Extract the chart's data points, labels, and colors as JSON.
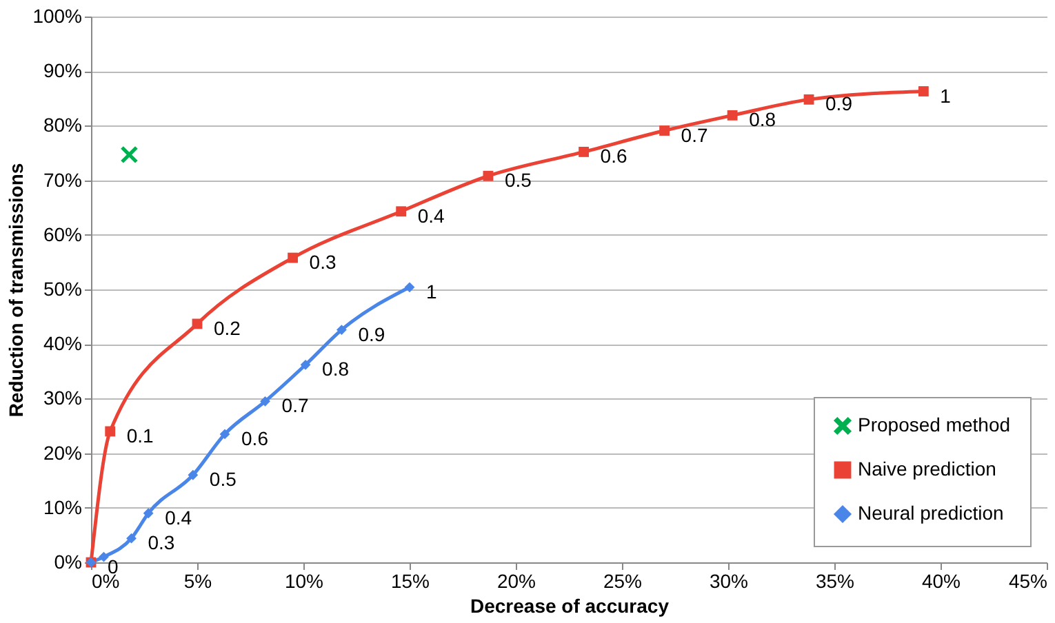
{
  "chart_data": {
    "type": "line",
    "xlabel": "Decrease of accuracy",
    "ylabel": "Reduction of transmissions",
    "xlim": [
      0,
      45
    ],
    "ylim": [
      0,
      100
    ],
    "xticks": [
      {
        "value": 0,
        "label": "0%"
      },
      {
        "value": 5,
        "label": "5%"
      },
      {
        "value": 10,
        "label": "10%"
      },
      {
        "value": 15,
        "label": "15%"
      },
      {
        "value": 20,
        "label": "20%"
      },
      {
        "value": 25,
        "label": "25%"
      },
      {
        "value": 30,
        "label": "30%"
      },
      {
        "value": 35,
        "label": "35%"
      },
      {
        "value": 40,
        "label": "40%"
      },
      {
        "value": 45,
        "label": "45%"
      }
    ],
    "yticks": [
      {
        "value": 0,
        "label": "0%"
      },
      {
        "value": 10,
        "label": "10%"
      },
      {
        "value": 20,
        "label": "20%"
      },
      {
        "value": 30,
        "label": "30%"
      },
      {
        "value": 40,
        "label": "40%"
      },
      {
        "value": 50,
        "label": "50%"
      },
      {
        "value": 60,
        "label": "60%"
      },
      {
        "value": 70,
        "label": "70%"
      },
      {
        "value": 80,
        "label": "80%"
      },
      {
        "value": 90,
        "label": "90%"
      },
      {
        "value": 100,
        "label": "100%"
      }
    ],
    "grid": "y",
    "legend": "bottom right",
    "line_style": "solid",
    "annotations": [
      {
        "text": "0",
        "x": 0,
        "y": 0
      },
      {
        "text": "0.1",
        "x": 0.9,
        "y": 24
      },
      {
        "text": "0.2",
        "x": 5.0,
        "y": 43.7
      },
      {
        "text": "0.3",
        "x": 9.5,
        "y": 55.8
      },
      {
        "text": "0.4",
        "x": 14.6,
        "y": 64.3
      },
      {
        "text": "0.5",
        "x": 18.7,
        "y": 70.8
      },
      {
        "text": "0.6",
        "x": 23.2,
        "y": 75.2
      },
      {
        "text": "0.7",
        "x": 27.0,
        "y": 79.1
      },
      {
        "text": "0.8",
        "x": 30.2,
        "y": 81.9
      },
      {
        "text": "0.9",
        "x": 33.8,
        "y": 84.8
      },
      {
        "text": "1",
        "x": 39.2,
        "y": 86.3
      },
      {
        "text": "0.3",
        "x": 1.9,
        "y": 4.4
      },
      {
        "text": "0.4",
        "x": 2.7,
        "y": 9
      },
      {
        "text": "0.5",
        "x": 4.8,
        "y": 16
      },
      {
        "text": "0.6",
        "x": 6.3,
        "y": 23.5
      },
      {
        "text": "0.7",
        "x": 8.2,
        "y": 29.5
      },
      {
        "text": "0.8",
        "x": 10.1,
        "y": 36.2
      },
      {
        "text": "0.9",
        "x": 11.8,
        "y": 42.6
      },
      {
        "text": "1",
        "x": 15.0,
        "y": 50.4
      }
    ],
    "series": [
      {
        "name": "Proposed method",
        "type": "scatter",
        "marker": "cross",
        "color": "#00b050",
        "x": [
          1.8
        ],
        "values": [
          74.7
        ]
      },
      {
        "name": "Naive prediction",
        "type": "line",
        "marker": "square",
        "color": "#ea4335",
        "x": [
          0,
          0.9,
          5.0,
          9.5,
          14.6,
          18.7,
          23.2,
          27.0,
          30.2,
          33.8,
          39.2
        ],
        "values": [
          0,
          24,
          43.7,
          55.8,
          64.3,
          70.8,
          75.2,
          79.1,
          81.9,
          84.8,
          86.3
        ]
      },
      {
        "name": "Neural prediction",
        "type": "line",
        "marker": "diamond",
        "color": "#4a86e8",
        "x": [
          0,
          0.6,
          1.9,
          2.7,
          4.8,
          6.3,
          8.2,
          10.1,
          11.8,
          15.0
        ],
        "values": [
          0,
          1,
          4.4,
          9,
          16,
          23.5,
          29.5,
          36.2,
          42.6,
          50.4
        ]
      }
    ]
  }
}
